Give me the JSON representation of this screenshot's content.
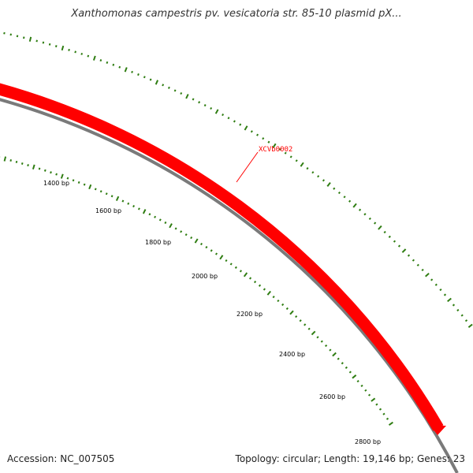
{
  "title": "Xanthomonas campestris pv. vesicatoria str. 85-10 plasmid pX...",
  "scale_labels": [
    "1400 bp",
    "1600 bp",
    "1800 bp",
    "2000 bp",
    "2200 bp",
    "2400 bp",
    "2600 bp",
    "2800 bp"
  ],
  "gene": {
    "label": "XCVb0002",
    "strand": "forward",
    "color": "#ff0000"
  },
  "colors": {
    "backbone": "#7a7a7a",
    "ticks": "#2f7d12",
    "gene": "#ff0000"
  },
  "footer": {
    "accession": "Accession: NC_007505",
    "summary": "Topology: circular; Length: 19,146 bp; Genes: 23"
  }
}
